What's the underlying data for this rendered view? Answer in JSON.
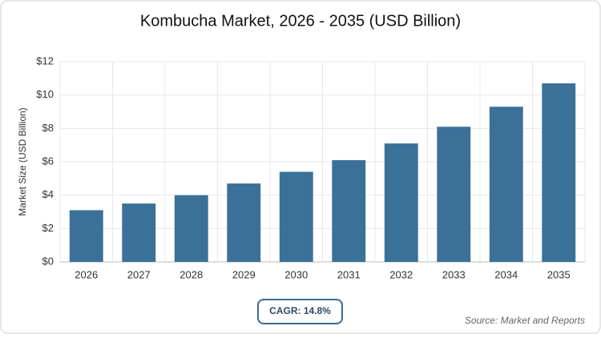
{
  "chart_data": {
    "type": "bar",
    "title": "Kombucha Market, 2026 - 2035 (USD Billion)",
    "y_label": "Market Size (USD Billion)",
    "categories": [
      "2026",
      "2027",
      "2028",
      "2029",
      "2030",
      "2031",
      "2032",
      "2033",
      "2034",
      "2035"
    ],
    "values": [
      3.1,
      3.5,
      4.0,
      4.7,
      5.4,
      6.1,
      7.1,
      8.1,
      9.3,
      10.7
    ],
    "color": "#3b7199",
    "ylim": [
      0,
      12
    ],
    "yticks": [
      {
        "value": 0,
        "label": "$0"
      },
      {
        "value": 2,
        "label": "$2"
      },
      {
        "value": 4,
        "label": "$4"
      },
      {
        "value": 6,
        "label": "$6"
      },
      {
        "value": 8,
        "label": "$8"
      },
      {
        "value": 10,
        "label": "$10"
      },
      {
        "value": 12,
        "label": "$12"
      }
    ],
    "grid": true,
    "annotation": "CAGR: 14.8%",
    "source": "Source: Market and Reports"
  }
}
